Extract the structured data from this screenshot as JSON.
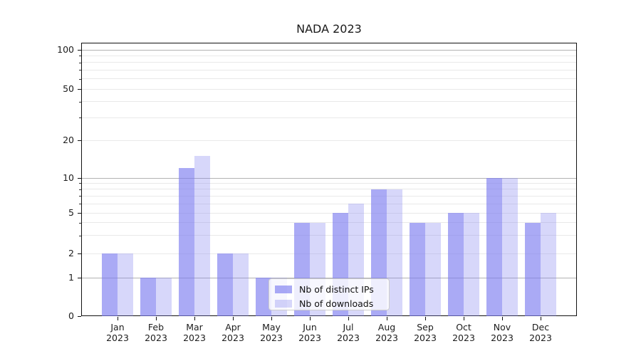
{
  "title": "NADA 2023",
  "legend": {
    "items": [
      {
        "label": "Nb of distinct IPs",
        "color": "rgba(125,125,240,0.65)"
      },
      {
        "label": "Nb of downloads",
        "color": "rgba(125,125,240,0.31)"
      }
    ]
  },
  "chart_data": {
    "type": "bar",
    "title": "NADA 2023",
    "categories": [
      "Jan 2023",
      "Feb 2023",
      "Mar 2023",
      "Apr 2023",
      "May 2023",
      "Jun 2023",
      "Jul 2023",
      "Aug 2023",
      "Sep 2023",
      "Oct 2023",
      "Nov 2023",
      "Dec 2023"
    ],
    "series": [
      {
        "name": "Nb of distinct IPs",
        "color": "rgba(125,125,240,0.65)",
        "values": [
          2,
          1,
          12,
          2,
          1,
          4,
          5,
          8,
          4,
          5,
          10,
          4
        ]
      },
      {
        "name": "Nb of downloads",
        "color": "rgba(125,125,240,0.31)",
        "values": [
          2,
          1,
          15,
          2,
          1,
          4,
          6,
          8,
          4,
          5,
          10,
          5
        ]
      }
    ],
    "xlabel": "",
    "ylabel": "",
    "yscale": "symlog",
    "ylim": [
      0,
      100
    ],
    "y_ticks": [
      0,
      1,
      2,
      5,
      10,
      20,
      50,
      100
    ],
    "grid": "horizontal",
    "legend_position": "lower-center-inside",
    "major_grid_values": [
      1,
      10,
      100
    ],
    "minor_grid_values": [
      2,
      3,
      4,
      5,
      6,
      7,
      8,
      9,
      20,
      30,
      40,
      50,
      60,
      70,
      80,
      90
    ]
  }
}
